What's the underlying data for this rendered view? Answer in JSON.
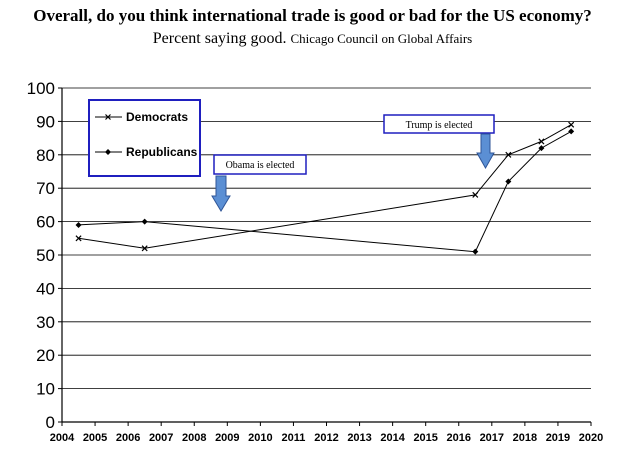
{
  "header": {
    "title": "Overall, do you think international trade is good or bad for the US economy?",
    "subtitle": "Percent saying good.",
    "source": "Chicago Council on Global Affairs"
  },
  "annotations": {
    "obama": "Obama is elected",
    "trump": "Trump is elected"
  },
  "chart_data": {
    "type": "line",
    "title": "Overall, do you think international trade is good or bad for the US economy?",
    "subtitle": "Percent saying good. Chicago Council on Global Affairs",
    "xlabel": "",
    "ylabel": "",
    "xlim": [
      2004,
      2020
    ],
    "ylim": [
      0,
      100
    ],
    "x_ticks": [
      "2004",
      "2005",
      "2006",
      "2007",
      "2008",
      "2009",
      "2010",
      "2011",
      "2012",
      "2013",
      "2014",
      "2015",
      "2016",
      "2017",
      "2018",
      "2019",
      "2020"
    ],
    "y_ticks": [
      "0",
      "10",
      "20",
      "30",
      "40",
      "50",
      "60",
      "70",
      "80",
      "90",
      "100"
    ],
    "grid": "horizontal",
    "legend_position": "top-left",
    "series": [
      {
        "name": "Democrats",
        "marker": "x",
        "color": "#000000",
        "points": [
          [
            2004.5,
            55
          ],
          [
            2006.5,
            52
          ],
          [
            2016.5,
            68
          ],
          [
            2017.5,
            80
          ],
          [
            2018.5,
            84
          ],
          [
            2019.4,
            89
          ]
        ]
      },
      {
        "name": "Republicans",
        "marker": "diamond",
        "color": "#000000",
        "points": [
          [
            2004.5,
            59
          ],
          [
            2006.5,
            60
          ],
          [
            2016.5,
            51
          ],
          [
            2017.5,
            72
          ],
          [
            2018.5,
            82
          ],
          [
            2019.4,
            87
          ]
        ]
      }
    ],
    "events": [
      {
        "label": "Obama is elected",
        "x": 2008.8,
        "value": 63
      },
      {
        "label": "Trump is elected",
        "x": 2016.9,
        "value": 76
      }
    ]
  },
  "colors": {
    "box_border": "#1f1fbf",
    "arrow_fill": "#5b8fd4",
    "arrow_stroke": "#2f5597",
    "line": "#000000"
  }
}
